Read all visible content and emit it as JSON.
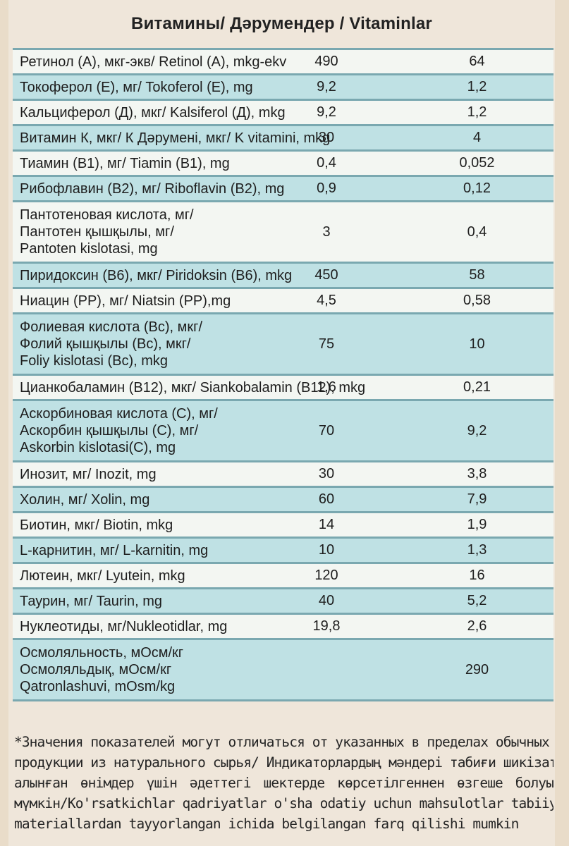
{
  "title": "Витамины/ Дәрумендер / Vitaminlar",
  "rows": [
    {
      "name": [
        "Ретинол (А), мкг-экв/ Retinol (A), mkg-ekv"
      ],
      "a": "490",
      "b": "64"
    },
    {
      "name": [
        "Токоферол (Е), мг/ Tokoferol (E), mg"
      ],
      "a": "9,2",
      "b": "1,2"
    },
    {
      "name": [
        "Кальциферол (Д), мкг/ Kalsiferol (Д), mkg"
      ],
      "a": "9,2",
      "b": "1,2"
    },
    {
      "name": [
        "Витамин К, мкг/ К Дәрумені, мкг/ K vitamini, mkg"
      ],
      "a": "30",
      "b": "4"
    },
    {
      "name": [
        "Тиамин (В1), мг/ Tiamin (B1), mg"
      ],
      "a": "0,4",
      "b": "0,052"
    },
    {
      "name": [
        "Рибофлавин (В2), мг/ Riboflavin (B2), mg"
      ],
      "a": "0,9",
      "b": "0,12"
    },
    {
      "name": [
        "Пантотеновая кислота, мг/",
        "Пантотен қышқылы, мг/",
        "Pantoten kislotasi, mg"
      ],
      "a": "3",
      "b": "0,4"
    },
    {
      "name": [
        "Пиридоксин (В6), мкг/ Piridoksin (B6), mkg"
      ],
      "a": "450",
      "b": "58"
    },
    {
      "name": [
        "Ниацин (РР), мг/ Niatsin (PP),mg"
      ],
      "a": "4,5",
      "b": "0,58"
    },
    {
      "name": [
        "Фолиевая кислота (Вс), мкг/",
        "Фолий қышқылы (Вс), мкг/",
        "Foliy kislotasi (Bc), mkg"
      ],
      "a": "75",
      "b": "10"
    },
    {
      "name": [
        "Цианкобаламин (В12), мкг/ Siankobalamin (B12), mkg"
      ],
      "a": "1,6",
      "b": "0,21"
    },
    {
      "name": [
        "Аскорбиновая кислота (С), мг/",
        "Аскорбин қышқылы (С), мг/",
        "Askorbin kislotasi(C), mg"
      ],
      "a": "70",
      "b": "9,2"
    },
    {
      "name": [
        "Инозит, мг/ Inozit, mg"
      ],
      "a": "30",
      "b": "3,8"
    },
    {
      "name": [
        "Холин, мг/ Xolin, mg"
      ],
      "a": "60",
      "b": "7,9"
    },
    {
      "name": [
        "Биотин, мкг/ Biotin, mkg"
      ],
      "a": "14",
      "b": "1,9"
    },
    {
      "name": [
        "L-карнитин, мг/ L-karnitin, mg"
      ],
      "a": "10",
      "b": "1,3"
    },
    {
      "name": [
        "Лютеин, мкг/ Lyutein, mkg"
      ],
      "a": "120",
      "b": "16"
    },
    {
      "name": [
        "Таурин, мг/ Taurin, mg"
      ],
      "a": "40",
      "b": "5,2"
    },
    {
      "name": [
        "Нуклеотиды, мг/Nukleotidlar, mg"
      ],
      "a": "19,8",
      "b": "2,6"
    },
    {
      "name": [
        "Осмоляльность, мОсм/кг",
        "Осмоляльдық, мОсм/кг",
        "Qatronlashuvi, mOsm/kg"
      ],
      "a": "",
      "b": "290"
    }
  ],
  "footnote": [
    "*Значения показателей могут отличаться от указанных в пределах обычных для",
    "продукции из натурального сырья/ Индикаторлардың мәндері табиғи шикізаттан",
    "алынған өнімдер үшін әдеттегі шектерде көрсетілгеннен өзгеше болуы",
    "мүмкін/Ko'rsatkichlar qadriyatlar o'sha odatiy uchun mahsulotlar tabiiy xom-ashyo va",
    "materiallardan tayyorlangan ichida belgilangan farq qilishi mumkin"
  ]
}
